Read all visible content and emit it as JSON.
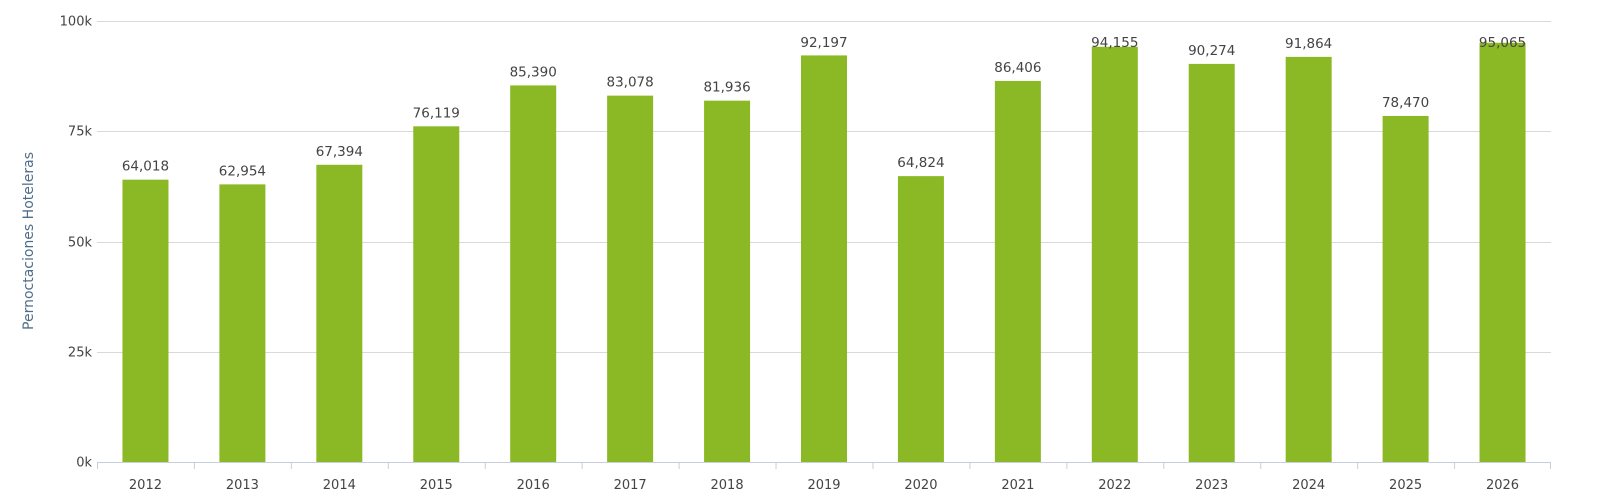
{
  "chart_data": {
    "type": "bar",
    "title": "",
    "xlabel": "",
    "ylabel": "Pernoctaciones Hoteleras",
    "ylim": [
      0,
      100000
    ],
    "y_ticks": [
      {
        "value": 0,
        "label": "0k"
      },
      {
        "value": 25000,
        "label": "25k"
      },
      {
        "value": 50000,
        "label": "50k"
      },
      {
        "value": 75000,
        "label": "75k"
      },
      {
        "value": 100000,
        "label": "100k"
      }
    ],
    "grid": true,
    "legend": "none",
    "bar_color": "#8ab925",
    "categories": [
      "2012",
      "2013",
      "2014",
      "2015",
      "2016",
      "2017",
      "2018",
      "2019",
      "2020",
      "2021",
      "2022",
      "2023",
      "2024",
      "2025",
      "2026"
    ],
    "values": [
      64018,
      62954,
      67394,
      76119,
      85390,
      83078,
      81936,
      92197,
      64824,
      86406,
      94155,
      90274,
      91864,
      78470,
      95065
    ],
    "value_labels": [
      "64,018",
      "62,954",
      "67,394",
      "76,119",
      "85,390",
      "83,078",
      "81,936",
      "92,197",
      "64,824",
      "86,406",
      "94,155",
      "90,274",
      "91,864",
      "78,470",
      "95,065"
    ]
  }
}
